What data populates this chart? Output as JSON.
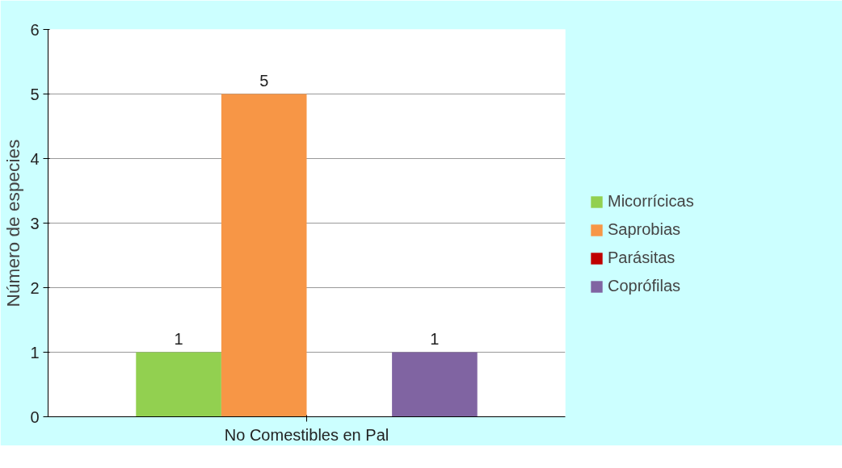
{
  "chart_data": {
    "type": "bar",
    "ylabel": "Número de especies",
    "categories": [
      "No Comestibles en Pal"
    ],
    "series": [
      {
        "name": "Micorrícicas",
        "color": "#92d050",
        "values": [
          1
        ],
        "value_labels": [
          "1"
        ]
      },
      {
        "name": "Saprobias",
        "color": "#f79646",
        "values": [
          5
        ],
        "value_labels": [
          "5"
        ]
      },
      {
        "name": "Parásitas",
        "color": "#c00000",
        "values": [
          0
        ],
        "value_labels": [
          null
        ]
      },
      {
        "name": "Coprófilas",
        "color": "#8064a2",
        "values": [
          1
        ],
        "value_labels": [
          "1"
        ]
      }
    ],
    "ylim": [
      0,
      6
    ],
    "yticks": [
      0,
      1,
      2,
      3,
      4,
      5,
      6
    ],
    "grid": "y",
    "legend": "right"
  }
}
